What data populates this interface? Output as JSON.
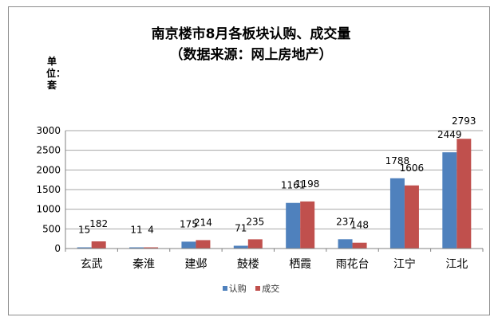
{
  "chart_data": {
    "type": "bar",
    "title": "南京楼市8月各板块认购、成交量",
    "subtitle": "（数据来源：网上房地产）",
    "ylabel": "单位：套",
    "xlabel": "",
    "categories": [
      "玄武",
      "秦淮",
      "建邺",
      "鼓楼",
      "栖霞",
      "雨花台",
      "江宁",
      "江北"
    ],
    "series": [
      {
        "name": "认购",
        "color": "#4f81bd",
        "values": [
          15,
          11,
          175,
          71,
          1161,
          237,
          1788,
          2449
        ]
      },
      {
        "name": "成交",
        "color": "#c0504d",
        "values": [
          182,
          4,
          214,
          235,
          1198,
          148,
          1606,
          2793
        ]
      }
    ],
    "ylim": [
      0,
      3000
    ],
    "yticks": [
      0,
      500,
      1000,
      1500,
      2000,
      2500,
      3000
    ],
    "grid": true,
    "legend": "bottom"
  }
}
